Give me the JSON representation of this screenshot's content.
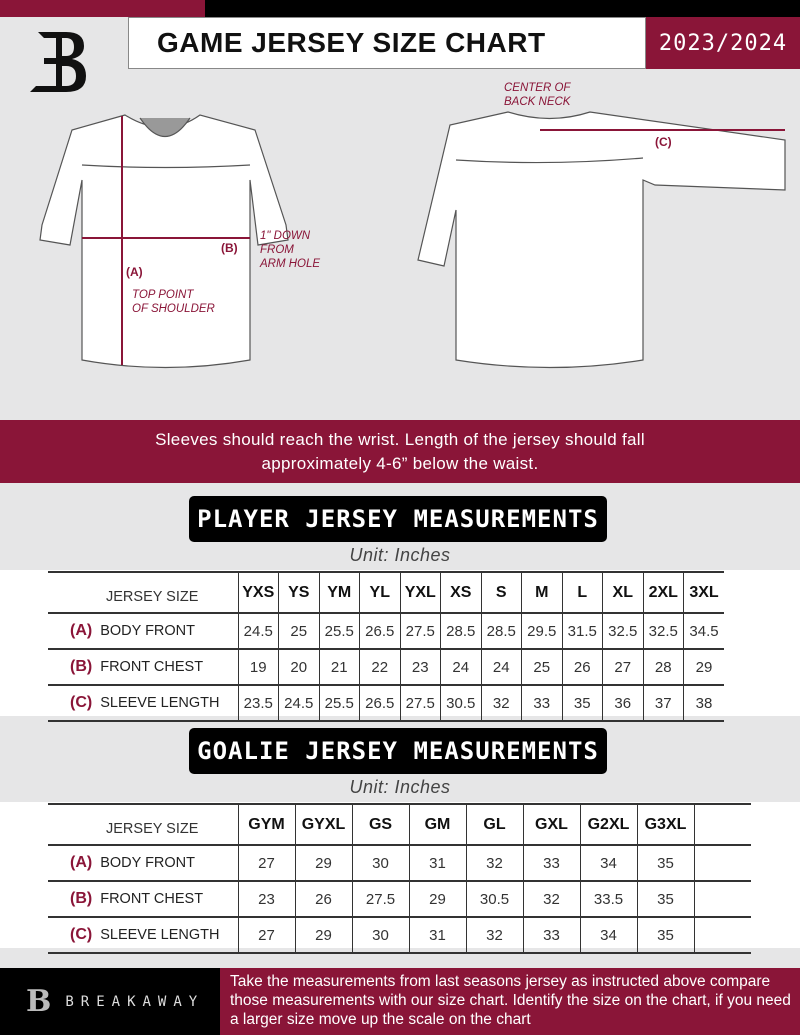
{
  "header": {
    "title": "GAME JERSEY SIZE CHART",
    "season": "2023/2024",
    "logo_letter": "B"
  },
  "diagram": {
    "front_labels": {
      "a": "(A)",
      "b": "(B)",
      "b_note_1": "1\" DOWN",
      "b_note_2": "FROM",
      "b_note_3": "ARM HOLE",
      "a_note_1": "TOP POINT",
      "a_note_2": "OF SHOULDER"
    },
    "back_labels": {
      "c": "(C)",
      "c_note_1": "CENTER OF",
      "c_note_2": "BACK NECK"
    }
  },
  "band": {
    "line1": "Sleeves should reach the wrist. Length of the jersey should fall",
    "line2": "approximately 4-6” below the waist."
  },
  "player": {
    "title": "PLAYER JERSEY MEASUREMENTS",
    "unit": "Unit: Inches",
    "size_label": "JERSEY SIZE",
    "sizes": [
      "YXS",
      "YS",
      "YM",
      "YL",
      "YXL",
      "XS",
      "S",
      "M",
      "L",
      "XL",
      "2XL",
      "3XL"
    ],
    "rows": [
      {
        "code": "(A)",
        "name": "BODY FRONT",
        "values": [
          "24.5",
          "25",
          "25.5",
          "26.5",
          "27.5",
          "28.5",
          "28.5",
          "29.5",
          "31.5",
          "32.5",
          "32.5",
          "34.5"
        ]
      },
      {
        "code": "(B)",
        "name": "FRONT CHEST",
        "values": [
          "19",
          "20",
          "21",
          "22",
          "23",
          "24",
          "24",
          "25",
          "26",
          "27",
          "28",
          "29"
        ]
      },
      {
        "code": "(C)",
        "name": "SLEEVE LENGTH",
        "values": [
          "23.5",
          "24.5",
          "25.5",
          "26.5",
          "27.5",
          "30.5",
          "32",
          "33",
          "35",
          "36",
          "37",
          "38"
        ]
      }
    ]
  },
  "goalie": {
    "title": "GOALIE JERSEY MEASUREMENTS",
    "unit": "Unit: Inches",
    "size_label": "JERSEY SIZE",
    "sizes": [
      "GYM",
      "GYXL",
      "GS",
      "GM",
      "GL",
      "GXL",
      "G2XL",
      "G3XL",
      ""
    ],
    "rows": [
      {
        "code": "(A)",
        "name": "BODY FRONT",
        "values": [
          "27",
          "29",
          "30",
          "31",
          "32",
          "33",
          "34",
          "35",
          ""
        ]
      },
      {
        "code": "(B)",
        "name": "FRONT CHEST",
        "values": [
          "23",
          "26",
          "27.5",
          "29",
          "30.5",
          "32",
          "33.5",
          "35",
          ""
        ]
      },
      {
        "code": "(C)",
        "name": "SLEEVE LENGTH",
        "values": [
          "27",
          "29",
          "30",
          "31",
          "32",
          "33",
          "34",
          "35",
          ""
        ]
      }
    ]
  },
  "footer": {
    "brand": "BREAKAWAY",
    "text": "Take the measurements from last seasons jersey as instructed above compare those measurements  with our size chart. Identify the size on the chart, if you need a larger size move up the scale on the chart"
  },
  "colors": {
    "accent": "#8a1538",
    "dark": "#000000",
    "background": "#e6e6e7"
  }
}
